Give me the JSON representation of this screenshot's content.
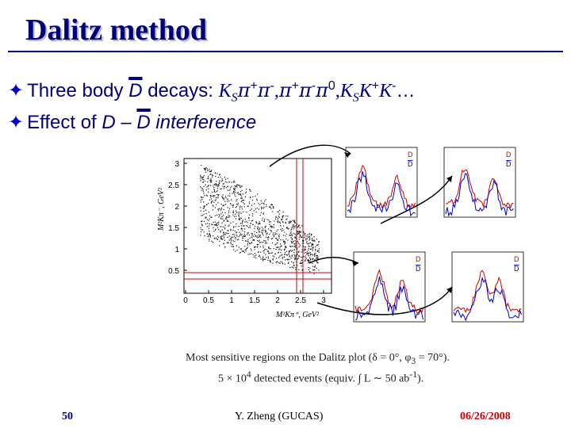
{
  "slide": {
    "title": "Dalitz method",
    "bullet1": {
      "prefix": "Three body ",
      "d": "D",
      "mid": " decays: ",
      "k1": "K",
      "s1": "S",
      "pi1": "π",
      "c1": "+",
      "pi2": "π",
      "c2": "-",
      "comma1": ",",
      "pi3": "π",
      "c3": "+",
      "pi4": "π",
      "c4": "-",
      "pi5": "π",
      "c5": "0",
      "comma2": ",",
      "k2": "K",
      "s2": "S",
      "k3": "K",
      "c6": "+",
      "k4": "K",
      "c7": "-",
      "ellipsis": "…"
    },
    "bullet2": {
      "prefix": "Effect of ",
      "d1": "D",
      "dash": " – ",
      "d2": "D",
      "suffix": " interference"
    },
    "bullet_icon": "four-pointed-star-icon",
    "caption_line1": "Most sensitive regions on the Dalitz plot (δ = 0°, φ",
    "caption_sub": "3",
    "caption_line1_end": " = 70°).",
    "caption_line2": "5 × 10",
    "caption_sup": "4",
    "caption_line2_end": " detected events (equiv. ∫ L ∼ 50 ab",
    "caption_sup2": "-1",
    "caption_end": ").",
    "footer": {
      "page": "50",
      "author": "Y. Zheng (GUCAS)",
      "date": "06/26/2008"
    },
    "colors": {
      "title": "#00007a",
      "footer_page": "#00007a",
      "footer_date": "#cc0000",
      "accent_red": "#cc0000",
      "accent_blue": "#0000cc"
    }
  },
  "figure": {
    "dalitz": {
      "ylabel": "M²Kπ⁻, GeV²",
      "xlabel": "M²Kπ⁺, GeV²",
      "y_ticks": [
        "3",
        "2.5",
        "2",
        "1.5",
        "1",
        "0.5"
      ],
      "x_ticks": [
        "0",
        "0.5",
        "1",
        "1.5",
        "2",
        "2.5",
        "3"
      ]
    },
    "panels": [
      {
        "legend_d": "D",
        "legend_dbar": "D"
      },
      {
        "legend_d": "D",
        "legend_dbar": "D"
      },
      {
        "legend_d": "D",
        "legend_dbar": "D"
      },
      {
        "legend_d": "D",
        "legend_dbar": "D"
      }
    ]
  }
}
